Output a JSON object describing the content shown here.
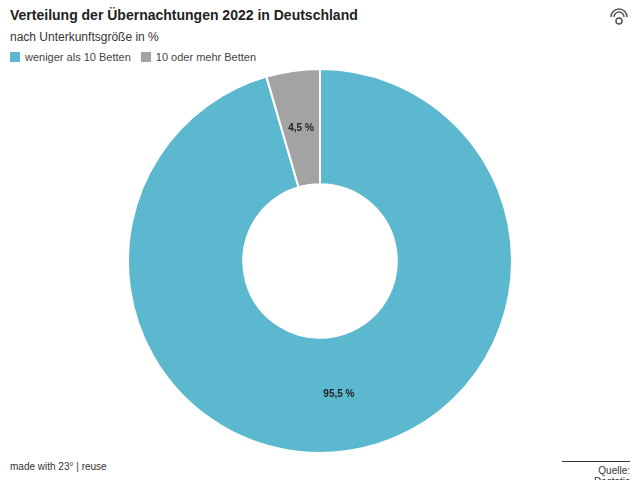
{
  "chart_data": {
    "type": "doughnut",
    "title": "Verteilung der Übernachtungen 2022 in Deutschland",
    "subtitle": "nach Unterkunftsgröße in %",
    "categories": [
      "weniger als 10 Betten",
      "10 oder mehr Betten"
    ],
    "values": [
      95.5,
      4.5
    ],
    "value_labels": [
      "95,5 %",
      "4,5 %"
    ],
    "colors": [
      "#5bb8cf",
      "#a3a3a3"
    ],
    "data_labels": true,
    "legend": "top-left",
    "footer": "made with 23° | reuse",
    "source": "Quelle: Destatis"
  }
}
